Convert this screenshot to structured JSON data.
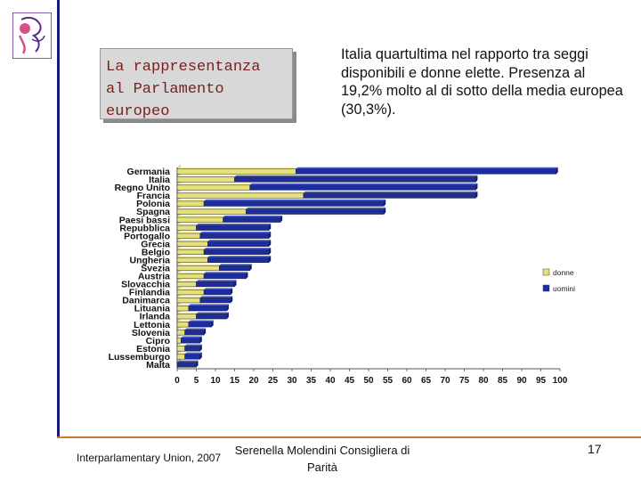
{
  "slide": {
    "title_lines": [
      "La rappresentanza",
      "al Parlamento",
      "europeo"
    ],
    "description": "Italia quartultima nel rapporto tra seggi disponibili e donne elette. Presenza al 19,2% molto al di sotto della media europea (30,3%).",
    "footer_source": "Interparlamentary Union, 2007",
    "footer_author": "Serenella Molendini Consigliera di Parità",
    "page_number": "17"
  },
  "colors": {
    "donne": "#e6e07a",
    "uomini": "#1c2d9e",
    "vline": "#1a1a7a",
    "hline": "#c87a3a",
    "title_text": "#7a1f1f"
  },
  "chart_data": {
    "type": "bar",
    "orientation": "horizontal",
    "stacked": true,
    "categories": [
      "Germania",
      "Italia",
      "Regno Unito",
      "Francia",
      "Polonia",
      "Spagna",
      "Paesi bassi",
      "Repubblica",
      "Portogallo",
      "Grecia",
      "Belgio",
      "Ungheria",
      "Svezia",
      "Austria",
      "Slovacchia",
      "Finlandia",
      "Danimarca",
      "Lituania",
      "Irlanda",
      "Lettonia",
      "Slovenia",
      "Cipro",
      "Estonia",
      "Lussemburgo",
      "Malta"
    ],
    "series": [
      {
        "name": "donne",
        "values": [
          31,
          15,
          19,
          33,
          7,
          18,
          12,
          5,
          6,
          8,
          7,
          8,
          11,
          7,
          5,
          7,
          6,
          3,
          5,
          3,
          2,
          1,
          2,
          2,
          0
        ]
      },
      {
        "name": "uomini",
        "values": [
          68,
          63,
          59,
          45,
          47,
          36,
          15,
          19,
          18,
          16,
          17,
          16,
          8,
          11,
          10,
          7,
          8,
          10,
          8,
          6,
          5,
          5,
          4,
          4,
          5
        ]
      }
    ],
    "xticks": [
      0,
      5,
      10,
      15,
      20,
      25,
      30,
      35,
      40,
      45,
      50,
      55,
      60,
      65,
      70,
      75,
      80,
      85,
      90,
      95,
      100
    ],
    "xlim": [
      0,
      100
    ],
    "legend_position": "right",
    "grid": false
  }
}
